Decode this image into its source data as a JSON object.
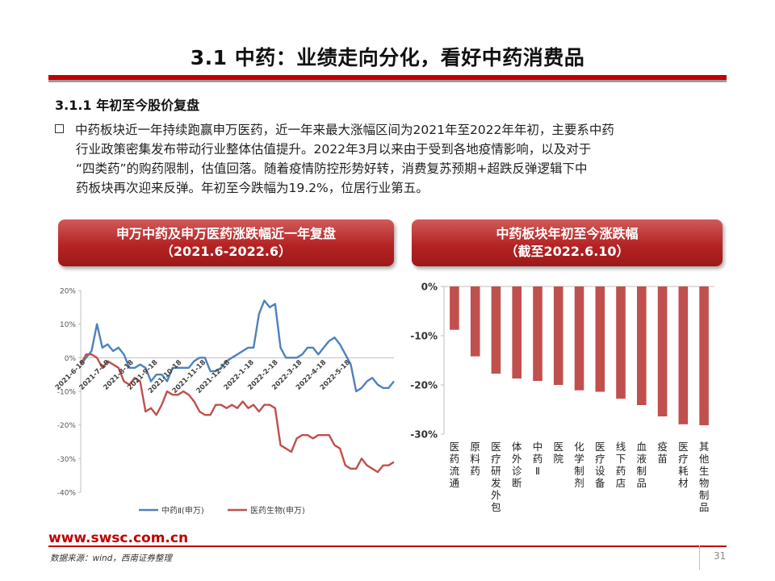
{
  "slide": {
    "title": "3.1 中药：业绩走向分化，看好中药消费品",
    "section_heading": "3.1.1 年初至今股价复盘",
    "bullet_lines": [
      "中药板块近一年持续跑赢申万医药，近一年来最大涨幅区间为2021年至2022年年初，主要系中药",
      "行业政策密集发布带动行业整体估值提升。2022年3月以来由于受到各地疫情影响，以及对于",
      "“四类药”的购药限制，估值回落。随着疫情防控形势好转，消费复苏预期+超跌反弹逻辑下中",
      "药板块再次迎来反弹。年初至今跌幅为19.2%，位居行业第五。"
    ]
  },
  "banners": {
    "left": {
      "line1": "申万中药及申万医药涨跌幅近一年复盘",
      "line2": "（2021.6-2022.6）"
    },
    "right": {
      "line1": "中药板块年初至今涨跌幅",
      "line2": "（截至2022.6.10）"
    }
  },
  "footer": {
    "url": "www.swsc.com.cn",
    "source": "数据来源：wind，西南证券整理",
    "page_number": "31"
  },
  "colors": {
    "accent_red": "#c00000",
    "series_blue": "#4f81bd",
    "series_red": "#c0504d"
  },
  "chart_data": [
    {
      "type": "line",
      "title": "申万中药及申万医药涨跌幅近一年复盘",
      "subtitle": "（2021.6-2022.6）",
      "ylim": [
        -40,
        20
      ],
      "y_ticks": [
        "20%",
        "10%",
        "0%",
        "-10%",
        "-20%",
        "-30%",
        "-40%"
      ],
      "x_tick_labels": [
        "2021-6-18",
        "2021-7-18",
        "2021-8-18",
        "2021-9-18",
        "2021-10-18",
        "2021-11-18",
        "2021-12-18",
        "2022-1-18",
        "2022-2-18",
        "2022-3-18",
        "2022-4-18",
        "2022-5-18"
      ],
      "legend_position": "bottom",
      "series": [
        {
          "name": "中药Ⅱ(申万)",
          "color": "#4f81bd",
          "values": [
            -2,
            0,
            2,
            10,
            3,
            4,
            2,
            3,
            1,
            -3,
            -3,
            -2,
            -3,
            -7,
            -5,
            -5,
            -7,
            -3,
            -3,
            -3,
            -3,
            -1,
            0,
            0,
            -4,
            -4,
            -3,
            -1,
            0,
            1,
            2,
            3,
            3,
            13,
            17,
            15,
            16,
            3,
            0,
            0,
            0,
            1,
            3,
            3,
            1,
            3,
            5,
            6,
            4,
            1,
            -2,
            -10,
            -9,
            -7,
            -6,
            -8,
            -9,
            -9,
            -7
          ]
        },
        {
          "name": "医药生物(申万)",
          "color": "#c0504d",
          "values": [
            -2,
            1,
            1,
            0,
            -3,
            -1,
            -2,
            -3,
            -7,
            -8,
            -6,
            -7,
            -16,
            -15,
            -17,
            -14,
            -10,
            -11,
            -11,
            -10,
            -11,
            -13,
            -16,
            -17,
            -17,
            -14,
            -14,
            -15,
            -14,
            -15,
            -13,
            -15,
            -14,
            -16,
            -14,
            -14,
            -15,
            -26,
            -27,
            -28,
            -24,
            -23,
            -23,
            -24,
            -23,
            -23,
            -23,
            -26,
            -27,
            -32,
            -33,
            -33,
            -30,
            -32,
            -33,
            -34,
            -32,
            -32,
            -31
          ]
        }
      ]
    },
    {
      "type": "bar",
      "title": "中药板块年初至今涨跌幅",
      "subtitle": "（截至2022.6.10）",
      "ylim": [
        -30,
        0
      ],
      "y_ticks": [
        "0%",
        "-10%",
        "-20%",
        "-30%"
      ],
      "categories": [
        "医药流通",
        "原料药",
        "医疗研发外包",
        "体外诊断",
        "中药Ⅱ",
        "医院",
        "化学制剂",
        "医疗设备",
        "线下药店",
        "血液制品",
        "疫苗",
        "医疗耗材",
        "其他生物制品"
      ],
      "values": [
        -8.8,
        -14.2,
        -17.7,
        -18.7,
        -19.2,
        -20.0,
        -21.1,
        -21.4,
        -22.8,
        -24.1,
        -26.4,
        -28.0,
        -28.2
      ],
      "color": "#c0504d"
    }
  ]
}
